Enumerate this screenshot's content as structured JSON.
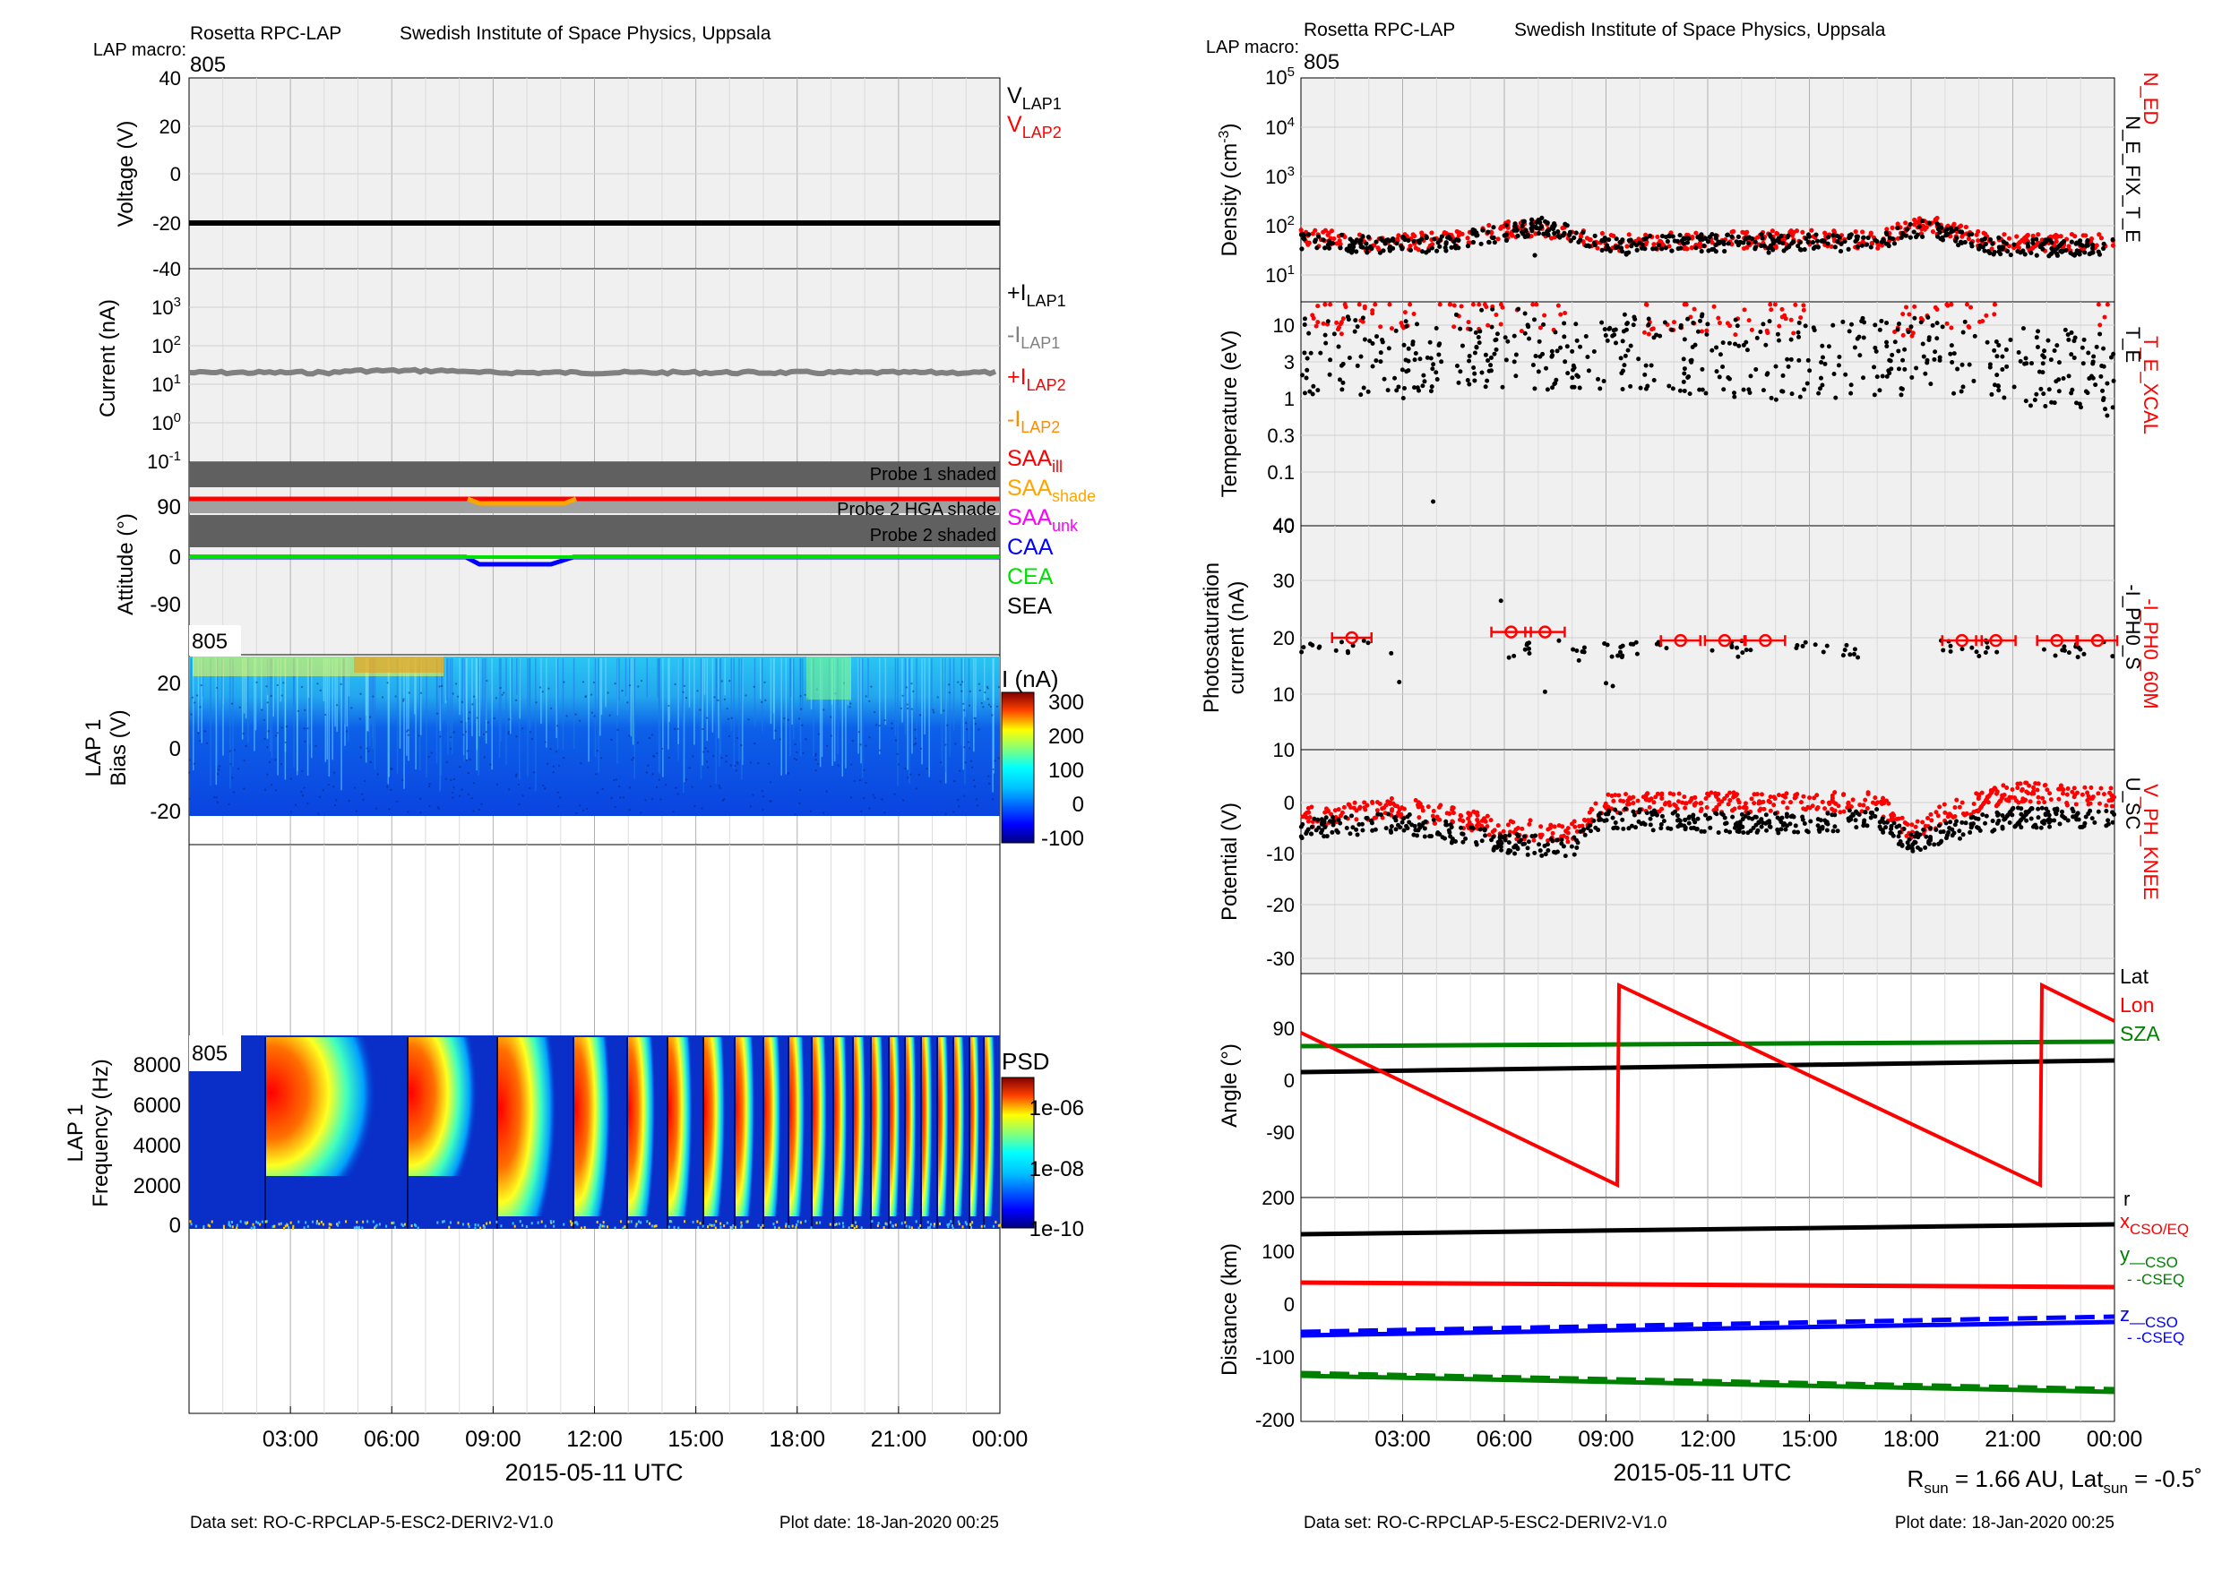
{
  "left": {
    "header": {
      "instrument": "Rosetta RPC-LAP",
      "institute": "Swedish Institute of Space Physics, Uppsala",
      "macro_label": "LAP macro:",
      "macro_value": "805"
    },
    "xlabel": "2015-05-11 UTC",
    "xticks": [
      "03:00",
      "06:00",
      "09:00",
      "12:00",
      "15:00",
      "18:00",
      "21:00",
      "00:00"
    ],
    "footer": {
      "dataset": "Data set: RO-C-RPCLAP-5-ESC2-DERIV2-V1.0",
      "plot_date": "Plot date: 18-Jan-2020 00:25"
    },
    "voltage": {
      "ylabel": "Voltage (V)",
      "yticks": [
        "40",
        "20",
        "0",
        "-20",
        "-40"
      ],
      "legend": [
        {
          "main": "V",
          "sub": "LAP1",
          "color": "#000000"
        },
        {
          "main": "V",
          "sub": "LAP2",
          "color": "#ff0000"
        }
      ]
    },
    "current": {
      "ylabel": "Current (nA)",
      "legend": [
        {
          "main": "+I",
          "sub": "LAP1",
          "color": "#000000"
        },
        {
          "main": "-I",
          "sub": "LAP1",
          "color": "#808080"
        },
        {
          "main": "+I",
          "sub": "LAP2",
          "color": "#ff0000"
        },
        {
          "main": "-I",
          "sub": "LAP2",
          "color": "#ff8c00"
        }
      ]
    },
    "attitude": {
      "ylabel": "Attitude (°)",
      "yticks": [
        "90",
        "0",
        "-90"
      ],
      "bands": [
        "Probe 1 shaded",
        "Probe 2 HGA shade",
        "Probe 2 shaded"
      ],
      "legend": [
        {
          "main": "SAA",
          "sub": "ill",
          "color": "#ff0000"
        },
        {
          "main": "SAA",
          "sub": "shade",
          "color": "#ffa500"
        },
        {
          "main": "SAA",
          "sub": "unk",
          "color": "#ff00ff"
        },
        {
          "main": "CAA",
          "sub": "",
          "color": "#0000ff"
        },
        {
          "main": "CEA",
          "sub": "",
          "color": "#00e000"
        },
        {
          "main": "SEA",
          "sub": "",
          "color": "#000000"
        }
      ]
    },
    "bias": {
      "ylabel1": "LAP 1",
      "ylabel2": "Bias (V)",
      "macro": "805",
      "yticks": [
        "20",
        "0",
        "-20"
      ],
      "cb_label": "I (nA)",
      "cb_ticks": [
        "300",
        "200",
        "100",
        "0",
        "-100"
      ]
    },
    "spec": {
      "ylabel1": "LAP 1",
      "ylabel2": "Frequency (Hz)",
      "macro": "805",
      "yticks": [
        "8000",
        "6000",
        "4000",
        "2000",
        "0"
      ],
      "cb_label": "PSD",
      "cb_ticks": [
        "1e-06",
        "1e-08",
        "1e-10"
      ]
    }
  },
  "right": {
    "header": {
      "instrument": "Rosetta RPC-LAP",
      "institute": "Swedish Institute of Space Physics, Uppsala",
      "macro_label": "LAP macro:",
      "macro_value": "805"
    },
    "xlabel": "2015-05-11 UTC",
    "xticks": [
      "03:00",
      "06:00",
      "09:00",
      "12:00",
      "15:00",
      "18:00",
      "21:00",
      "00:00"
    ],
    "footer": {
      "dataset": "Data set: RO-C-RPCLAP-5-ESC2-DERIV2-V1.0",
      "plot_date": "Plot date: 18-Jan-2020 00:25"
    },
    "sun_info": {
      "r_main": "R",
      "r_sub": "sun",
      "r_rest": " = 1.66 AU, Lat",
      "lat_sub": "sun",
      "lat_rest": " = -0.5˚"
    },
    "density": {
      "ylabel": "Density (cm",
      "ylabel_sup": "-3",
      "ylabel_end": ")",
      "legend": [
        {
          "text": "N_ED",
          "color": "#ff0000"
        },
        {
          "text": "N_E_FIX_T_E",
          "color": "#000000"
        }
      ]
    },
    "temperature": {
      "ylabel": "Temperature (eV)",
      "yticks": [
        "10",
        "3",
        "1",
        "0.3",
        "0.1",
        "40"
      ],
      "legend": [
        {
          "text": "T_E_XCAL",
          "color": "#ff0000"
        },
        {
          "text": "T_E",
          "color": "#000000"
        }
      ]
    },
    "photo": {
      "ylabel1": "Photosaturation",
      "ylabel2": "current (nA)",
      "yticks": [
        "30",
        "20",
        "10"
      ],
      "legend": [
        {
          "text": "-I_PH0_60M",
          "color": "#ff0000"
        },
        {
          "text": "-I_PH0_S",
          "color": "#000000"
        }
      ]
    },
    "potential": {
      "ylabel": "Potential (V)",
      "yticks": [
        "10",
        "0",
        "-10",
        "-20",
        "-30"
      ],
      "legend": [
        {
          "text": "V_PH_KNEE",
          "color": "#ff0000"
        },
        {
          "text": "U_SC",
          "color": "#000000"
        }
      ]
    },
    "angle": {
      "ylabel": "Angle (°)",
      "yticks": [
        "90",
        "0",
        "-90",
        "200"
      ],
      "legend": [
        {
          "text": "Lat",
          "color": "#000000"
        },
        {
          "text": "Lon",
          "color": "#ff0000"
        },
        {
          "text": "SZA",
          "color": "#008000"
        }
      ]
    },
    "distance": {
      "ylabel": "Distance (km)",
      "yticks": [
        "100",
        "0",
        "-100",
        "-200"
      ],
      "legend": [
        {
          "main": "r",
          "sub": "",
          "color": "#000000"
        },
        {
          "main": "x",
          "sub": "CSO/EQ",
          "color": "#ff0000"
        },
        {
          "main": "y",
          "sub": "—CSO",
          "color": "#008000"
        },
        {
          "main": "",
          "sub": "- -CSEQ",
          "color": "#008000"
        },
        {
          "main": "z",
          "sub": "—CSO",
          "color": "#0000ff"
        },
        {
          "main": "",
          "sub": "- -CSEQ",
          "color": "#0000ff"
        }
      ]
    }
  },
  "chart_data": [
    {
      "type": "line",
      "title": "",
      "xlabel": "2015-05-11 UTC",
      "ylabel": "Voltage (V)",
      "ylim": [
        -40,
        40
      ],
      "x": [
        0,
        24
      ],
      "series": [
        {
          "name": "V_LAP1",
          "values": [
            -20,
            -20
          ]
        }
      ]
    },
    {
      "type": "line",
      "title": "",
      "xlabel": "2015-05-11 UTC",
      "ylabel": "Current (nA)",
      "yscale": "log",
      "x": [
        0,
        3,
        6,
        9,
        12,
        15,
        18,
        21,
        24
      ],
      "series": [
        {
          "name": "-I_LAP1",
          "values": [
            20,
            21,
            22,
            20,
            20,
            20,
            20,
            21,
            20
          ]
        }
      ]
    },
    {
      "type": "line",
      "title": "",
      "xlabel": "2015-05-11 UTC",
      "ylabel": "Attitude (°)",
      "ylim": [
        -130,
        170
      ],
      "x": [
        0,
        8.3,
        8.5,
        10.9,
        11.1,
        24
      ],
      "series": [
        {
          "name": "SAA_ill",
          "values": [
            95,
            95,
            null,
            null,
            95,
            95
          ]
        },
        {
          "name": "SAA_shade",
          "values": [
            null,
            95,
            90,
            90,
            95,
            null
          ]
        },
        {
          "name": "CAA",
          "values": [
            0,
            0,
            -10,
            -10,
            0,
            0
          ]
        },
        {
          "name": "CEA",
          "values": [
            0,
            0,
            0,
            0,
            0,
            0
          ]
        }
      ]
    },
    {
      "type": "heatmap",
      "title": "",
      "xlabel": "2015-05-11 UTC",
      "ylabel": "Bias (V)",
      "ylim": [
        -30,
        30
      ],
      "colorbar_label": "I (nA)",
      "colorbar_range": [
        -100,
        300
      ]
    },
    {
      "type": "heatmap",
      "title": "",
      "xlabel": "2015-05-11 UTC",
      "ylabel": "Frequency (Hz)",
      "ylim": [
        0,
        9500
      ],
      "colorbar_label": "PSD",
      "colorbar_range": [
        "1e-10",
        "1e-06"
      ],
      "yscale_color": "log"
    },
    {
      "type": "scatter",
      "title": "",
      "xlabel": "2015-05-11 UTC",
      "ylabel": "Density (cm-3)",
      "yscale": "log",
      "ylim": [
        1,
        100000
      ],
      "x": [
        0,
        2,
        4,
        6,
        7,
        9,
        12,
        15,
        17,
        18.5,
        20,
        22,
        24
      ],
      "series": [
        {
          "name": "N_ED",
          "values": [
            60,
            45,
            50,
            80,
            90,
            45,
            50,
            55,
            50,
            110,
            50,
            45,
            45
          ]
        },
        {
          "name": "N_E_FIX_T_E",
          "values": [
            50,
            40,
            40,
            70,
            100,
            40,
            45,
            45,
            45,
            90,
            40,
            35,
            40
          ]
        }
      ]
    },
    {
      "type": "scatter",
      "title": "",
      "xlabel": "2015-05-11 UTC",
      "ylabel": "Temperature (eV)",
      "yscale": "log",
      "x": [
        0,
        3,
        6,
        9,
        12,
        15,
        18,
        21,
        24
      ],
      "series": [
        {
          "name": "T_E_XCAL",
          "values": [
            12,
            15,
            14,
            13,
            12,
            14,
            12,
            15,
            12
          ]
        },
        {
          "name": "T_E",
          "values": [
            4,
            3.5,
            5,
            4,
            4,
            3,
            4,
            3,
            2
          ]
        }
      ]
    },
    {
      "type": "scatter",
      "title": "",
      "xlabel": "2015-05-11 UTC",
      "ylabel": "Photosaturation current (nA)",
      "ylim": [
        10,
        40
      ],
      "x": [
        1.5,
        6.2,
        7.2,
        11.2,
        12.5,
        13.7,
        19.5,
        20.5,
        22.3,
        23.5
      ],
      "series": [
        {
          "name": "-I_PH0_60M",
          "values": [
            20,
            21,
            21,
            19.5,
            19.5,
            19.5,
            19.5,
            19.5,
            19.5,
            19.5
          ]
        }
      ]
    },
    {
      "type": "scatter",
      "title": "",
      "xlabel": "2015-05-11 UTC",
      "ylabel": "Potential (V)",
      "ylim": [
        -32,
        10
      ],
      "x": [
        0,
        3,
        6,
        8,
        9,
        12,
        15,
        17,
        18,
        19,
        21,
        24
      ],
      "series": [
        {
          "name": "V_PH_KNEE",
          "values": [
            -3,
            -1,
            -5,
            -6,
            0,
            0,
            0,
            0,
            -6,
            -2,
            2,
            1
          ]
        },
        {
          "name": "U_SC",
          "values": [
            -5,
            -4,
            -8,
            -9,
            -3,
            -4,
            -4,
            -3,
            -8,
            -6,
            -3,
            -3
          ]
        }
      ]
    },
    {
      "type": "line",
      "title": "",
      "xlabel": "2015-05-11 UTC",
      "ylabel": "Angle (°)",
      "x": [
        0,
        9.3,
        9.31,
        21.7,
        21.71,
        24
      ],
      "series": [
        {
          "name": "Lat",
          "values": [
            12,
            27,
            27,
            41,
            41,
            44
          ]
        },
        {
          "name": "Lon",
          "values": [
            87,
            -180,
            180,
            -180,
            180,
            117
          ]
        },
        {
          "name": "SZA",
          "values": [
            67,
            68,
            68,
            72,
            72,
            73
          ]
        }
      ]
    },
    {
      "type": "line",
      "title": "",
      "xlabel": "2015-05-11 UTC",
      "ylabel": "Distance (km)",
      "ylim": [
        -200,
        200
      ],
      "x": [
        0,
        24
      ],
      "series": [
        {
          "name": "r",
          "values": [
            135,
            152
          ]
        },
        {
          "name": "x",
          "values": [
            51,
            43
          ]
        },
        {
          "name": "y",
          "values": [
            -117,
            -145
          ]
        },
        {
          "name": "z",
          "values": [
            -45,
            -20
          ]
        }
      ]
    }
  ]
}
